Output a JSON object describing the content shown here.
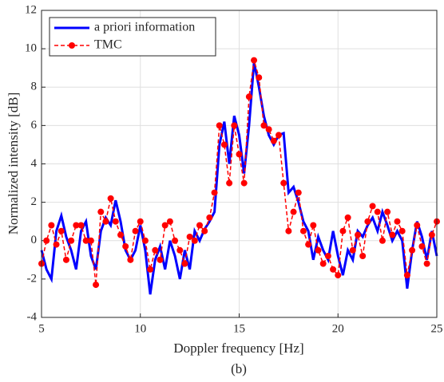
{
  "chart_data": {
    "type": "line",
    "xlabel": "Doppler frequency [Hz]",
    "ylabel": "Normalized intensity [dB]",
    "caption": "(b)",
    "x": [
      5,
      5.25,
      5.5,
      5.75,
      6,
      6.25,
      6.5,
      6.75,
      7,
      7.25,
      7.5,
      7.75,
      8,
      8.25,
      8.5,
      8.75,
      9,
      9.25,
      9.5,
      9.75,
      10,
      10.25,
      10.5,
      10.75,
      11,
      11.25,
      11.5,
      11.75,
      12,
      12.25,
      12.5,
      12.75,
      13,
      13.25,
      13.5,
      13.75,
      14,
      14.25,
      14.5,
      14.75,
      15,
      15.25,
      15.5,
      15.75,
      16,
      16.25,
      16.5,
      16.75,
      17,
      17.25,
      17.5,
      17.75,
      18,
      18.25,
      18.5,
      18.75,
      19,
      19.25,
      19.5,
      19.75,
      20,
      20.25,
      20.5,
      20.75,
      21,
      21.25,
      21.5,
      21.75,
      22,
      22.25,
      22.5,
      22.75,
      23,
      23.25,
      23.5,
      23.75,
      24,
      24.25,
      24.5,
      24.75,
      25
    ],
    "series": [
      {
        "name": "a priori information",
        "color": "#0000ff",
        "style": "solid",
        "marker": false,
        "values": [
          -0.5,
          -1.5,
          -2.0,
          0.5,
          1.3,
          0.2,
          -0.5,
          -1.5,
          0.5,
          1.0,
          -0.8,
          -1.5,
          0.5,
          1.2,
          0.8,
          2.1,
          1.0,
          -0.5,
          -1.0,
          -0.5,
          0.8,
          -0.5,
          -2.8,
          -1.0,
          -0.3,
          -1.5,
          0.0,
          -0.8,
          -2.0,
          -0.5,
          -1.5,
          0.5,
          0.0,
          0.6,
          1.0,
          1.5,
          5.0,
          6.2,
          4.0,
          6.5,
          5.5,
          3.5,
          6.0,
          9.3,
          8.0,
          6.5,
          5.5,
          5.0,
          5.5,
          5.6,
          2.5,
          2.8,
          2.0,
          1.0,
          0.5,
          -1.0,
          0.2,
          -0.5,
          -1.0,
          0.5,
          -0.8,
          -1.8,
          -0.5,
          -1.0,
          0.5,
          0.2,
          0.8,
          1.2,
          0.5,
          1.5,
          0.8,
          0.0,
          0.5,
          0.0,
          -2.5,
          -0.5,
          1.0,
          0.2,
          -1.0,
          0.5,
          -0.8
        ]
      },
      {
        "name": "TMC",
        "color": "#ff0000",
        "style": "dashed",
        "marker": true,
        "values": [
          -1.2,
          0.0,
          0.8,
          -0.2,
          0.5,
          -1.0,
          0.0,
          0.8,
          0.8,
          0.0,
          0.0,
          -2.3,
          1.5,
          1.0,
          2.2,
          1.0,
          0.3,
          -0.3,
          -1.0,
          0.5,
          1.0,
          0.0,
          -1.5,
          -0.5,
          -1.0,
          0.8,
          1.0,
          0.0,
          -0.5,
          -1.2,
          0.2,
          0.0,
          0.8,
          0.5,
          1.2,
          2.5,
          6.0,
          5.0,
          3.0,
          6.0,
          4.5,
          3.0,
          7.5,
          9.4,
          8.5,
          6.0,
          5.8,
          5.2,
          5.5,
          3.0,
          0.5,
          1.5,
          2.5,
          0.5,
          -0.2,
          0.8,
          -0.5,
          -1.2,
          -0.8,
          -1.5,
          -1.8,
          0.5,
          1.2,
          -0.5,
          0.3,
          -0.8,
          1.0,
          1.8,
          1.5,
          0.0,
          1.5,
          0.3,
          1.0,
          0.5,
          -1.8,
          -0.5,
          0.8,
          -0.3,
          -1.2,
          0.3,
          1.0
        ]
      }
    ],
    "xlim": [
      5,
      25
    ],
    "xticks": [
      5,
      10,
      15,
      20,
      25
    ],
    "ylim": [
      -4,
      12
    ],
    "yticks": [
      -4,
      -2,
      0,
      2,
      4,
      6,
      8,
      10,
      12
    ],
    "grid": true,
    "legend": "top-left"
  }
}
